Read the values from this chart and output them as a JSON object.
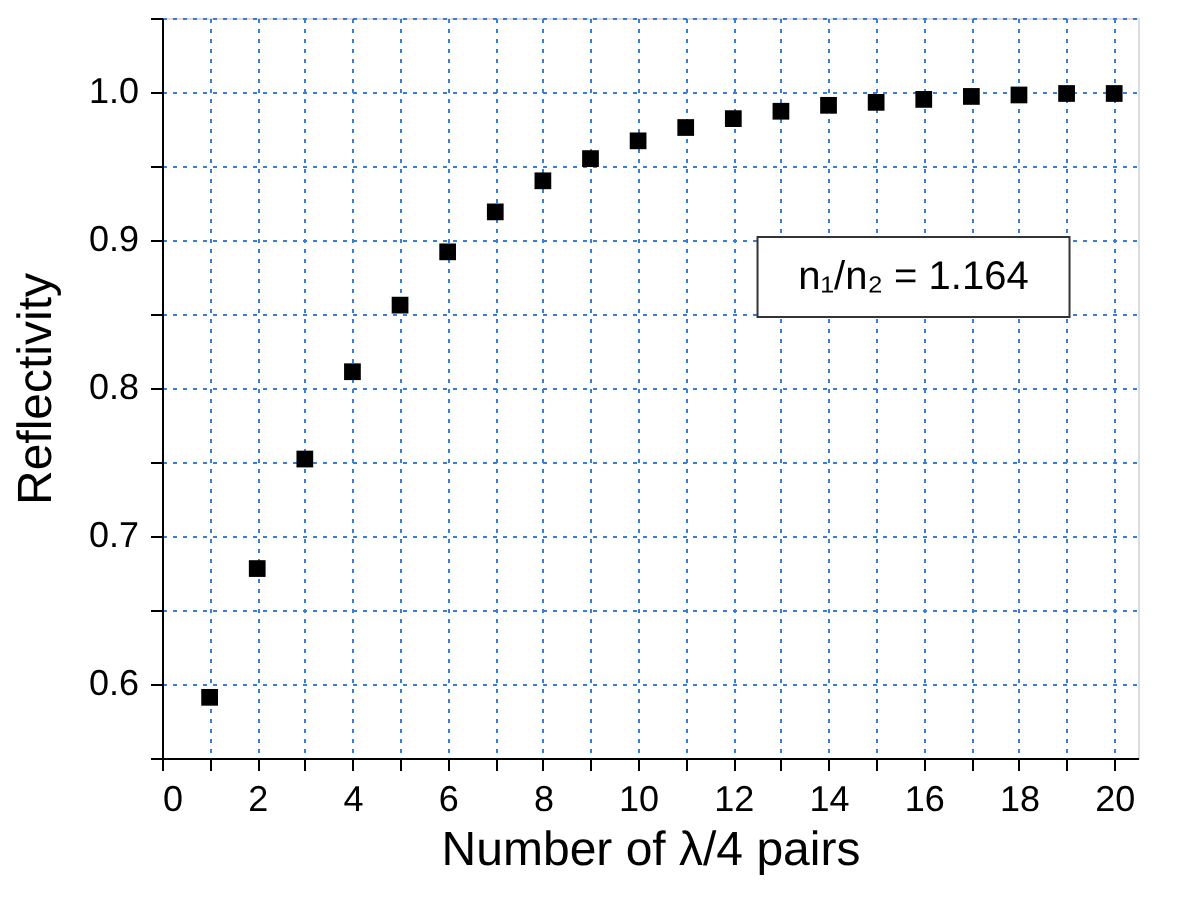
{
  "chart_data": {
    "type": "scatter",
    "xlabel": "Number of λ/4 pairs",
    "ylabel": "Reflectivity",
    "x": [
      1,
      2,
      3,
      4,
      5,
      6,
      7,
      8,
      9,
      10,
      11,
      12,
      13,
      14,
      15,
      16,
      17,
      18,
      19,
      20
    ],
    "series": [
      {
        "color": "#000000",
        "values": [
          0.591,
          0.678,
          0.752,
          0.811,
          0.856,
          0.892,
          0.919,
          0.94,
          0.955,
          0.967,
          0.976,
          0.982,
          0.987,
          0.991,
          0.993,
          0.995,
          0.997,
          0.998,
          0.999,
          0.999
        ]
      }
    ],
    "xlim": [
      0,
      20.5
    ],
    "ylim": [
      0.55,
      1.05
    ],
    "xticks": [
      0,
      {
        "value": 1,
        "label": null
      },
      2,
      {
        "value": 3,
        "label": null
      },
      4,
      {
        "value": 5,
        "label": null
      },
      6,
      {
        "value": 7,
        "label": null
      },
      8,
      {
        "value": 9,
        "label": null
      },
      10,
      {
        "value": 11,
        "label": null
      },
      12,
      {
        "value": 13,
        "label": null
      },
      14,
      {
        "value": 15,
        "label": null
      },
      16,
      {
        "value": 17,
        "label": null
      },
      18,
      {
        "value": 19,
        "label": null
      },
      20
    ],
    "yticks": [
      {
        "value": 0.55,
        "label": null
      },
      {
        "value": 0.6,
        "label": "0.6"
      },
      {
        "value": 0.65,
        "label": null
      },
      {
        "value": 0.7,
        "label": "0.7"
      },
      {
        "value": 0.75,
        "label": null
      },
      {
        "value": 0.8,
        "label": "0.8"
      },
      {
        "value": 0.85,
        "label": null
      },
      {
        "value": 0.9,
        "label": "0.9"
      },
      {
        "value": 0.95,
        "label": null
      },
      {
        "value": 1.0,
        "label": "1.0"
      },
      {
        "value": 1.05,
        "label": null
      }
    ],
    "annotations": [
      "n₁/n₂ = 1.164"
    ],
    "grid": true,
    "marker": "square"
  }
}
